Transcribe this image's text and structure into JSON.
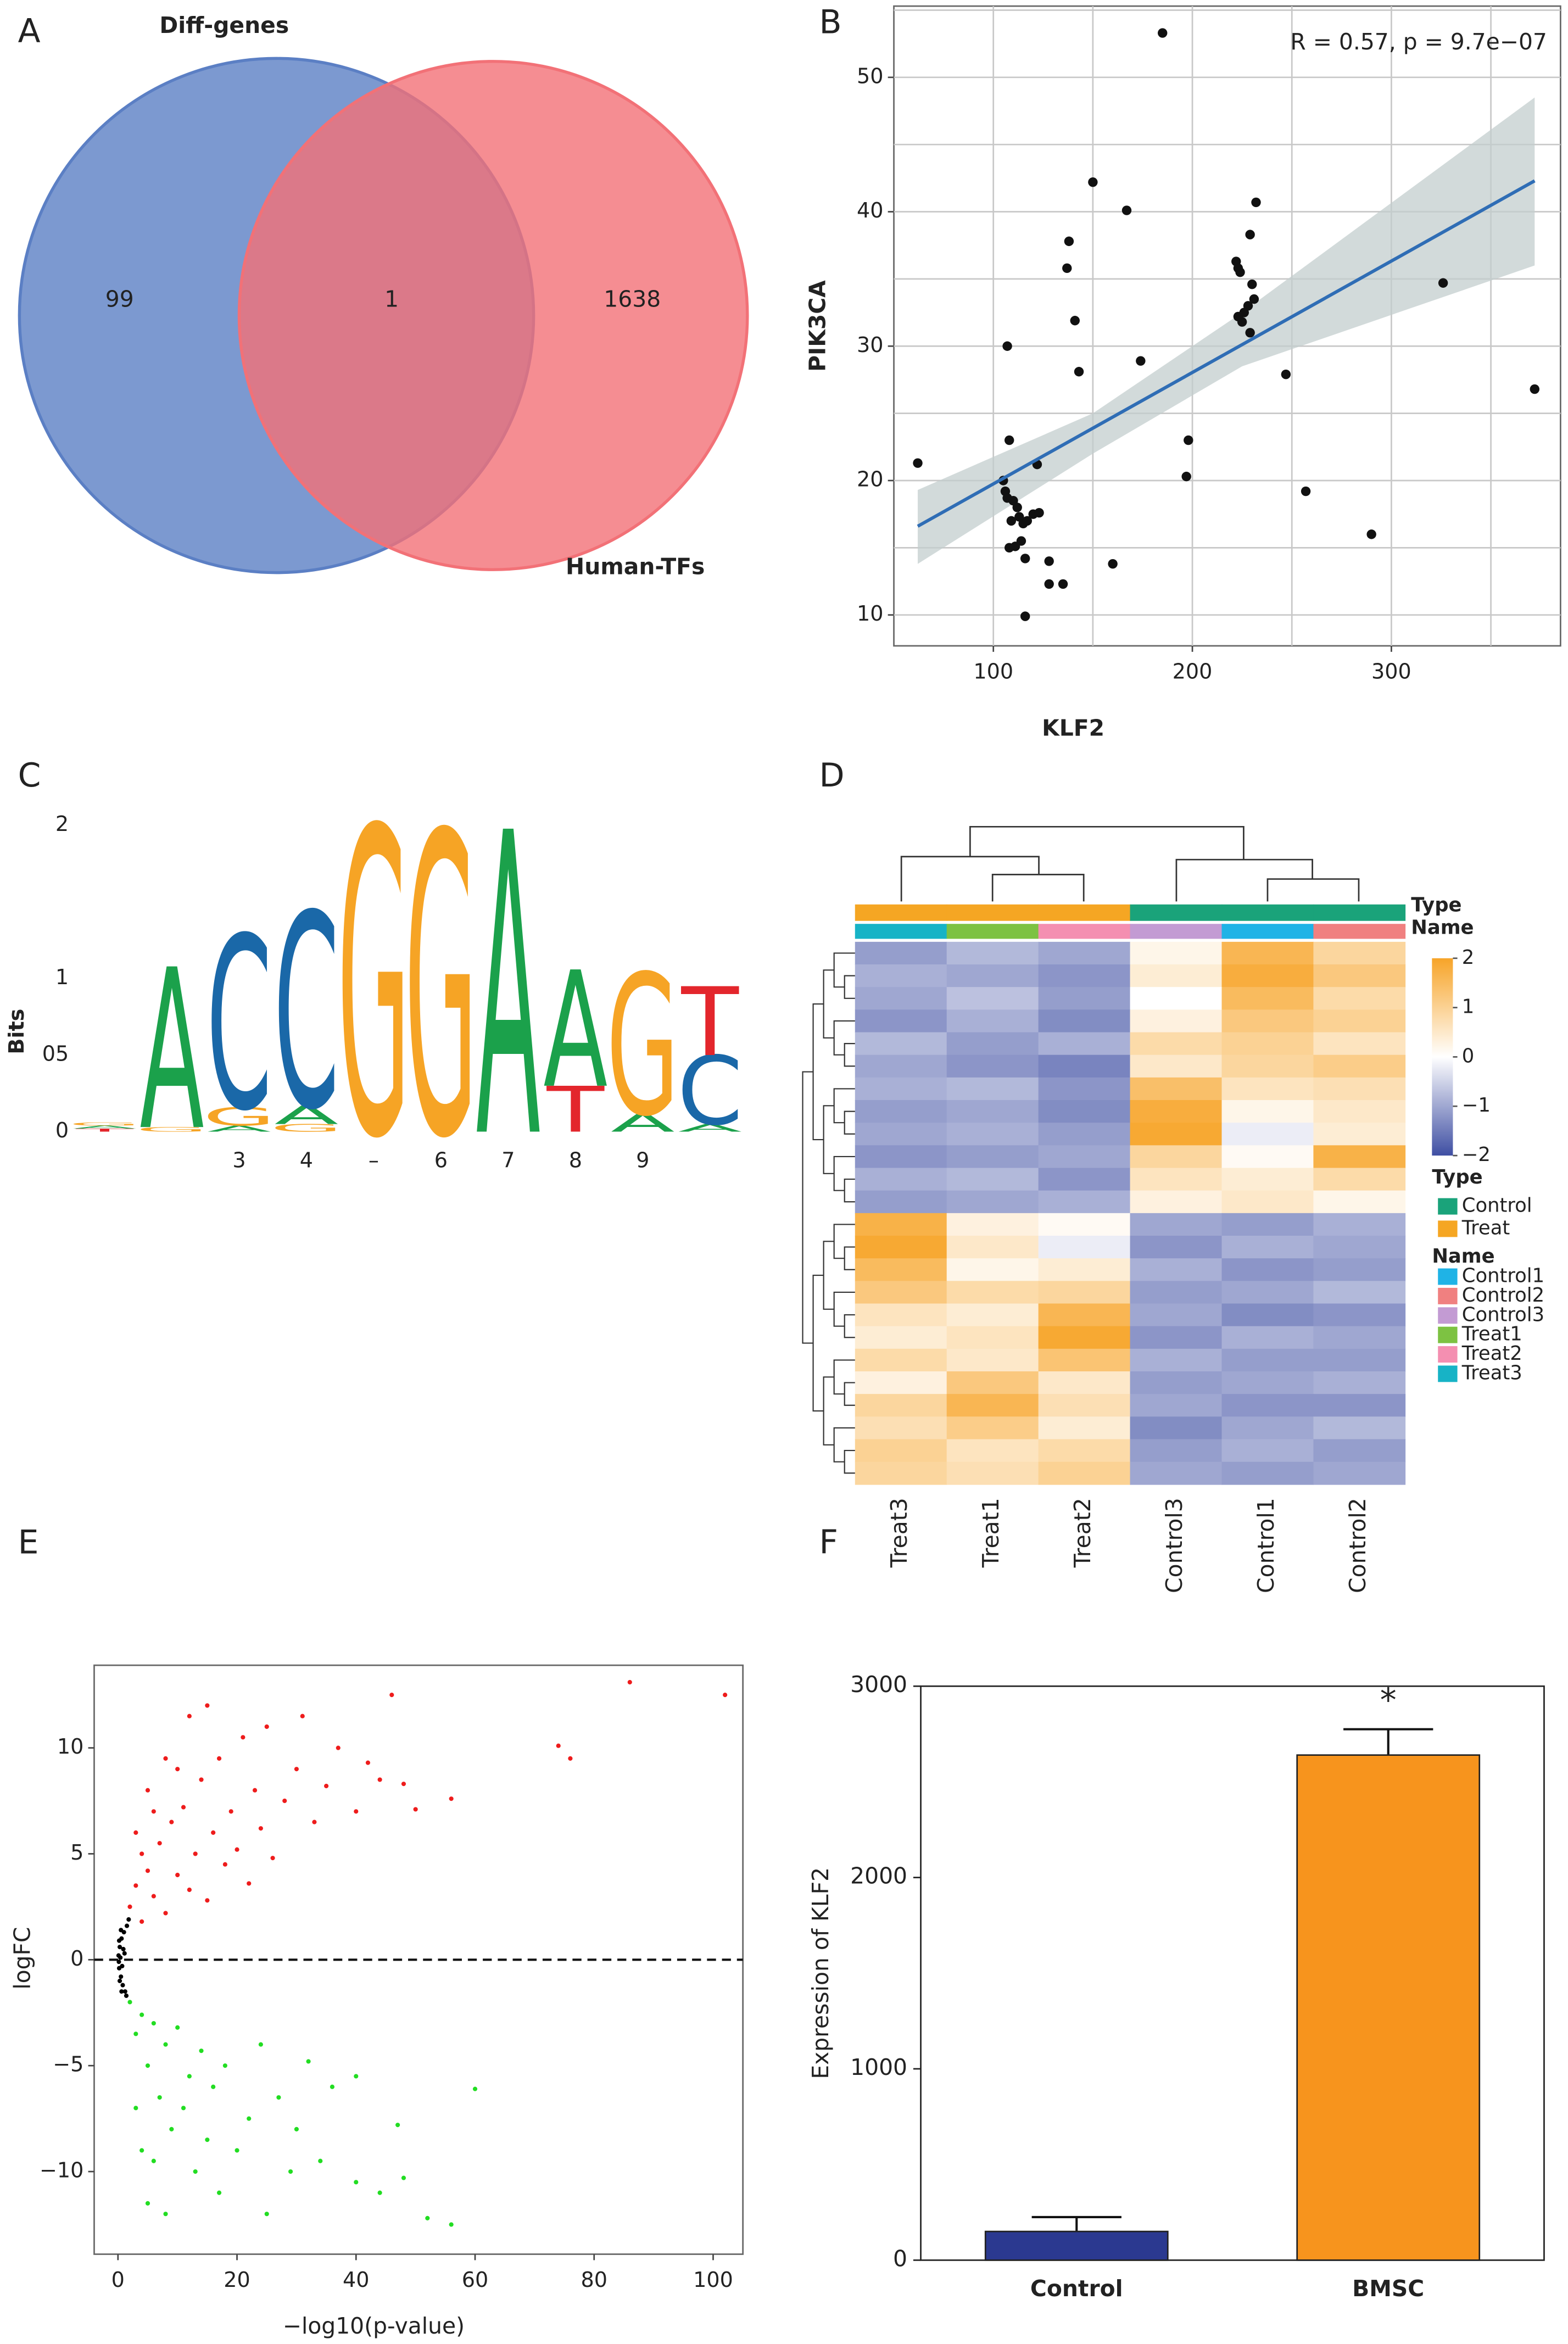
{
  "chart_data": [
    {
      "type": "venn",
      "panel": "A",
      "sets": [
        "Diff-genes",
        "Human-TFs"
      ],
      "values": [
        99,
        1,
        1638
      ],
      "colors": [
        "#5b7fc4",
        "#f27177"
      ]
    },
    {
      "type": "scatter",
      "panel": "B",
      "xlabel": "KLF2",
      "ylabel": "PIK3CA",
      "annotation": "R = 0.57, p = 9.7e−07",
      "x": [
        62,
        185,
        150,
        167,
        138,
        137,
        141,
        143,
        174,
        107,
        108,
        122,
        105,
        106,
        107,
        110,
        112,
        113,
        115,
        117,
        120,
        123,
        109,
        114,
        108,
        111,
        116,
        128,
        128,
        135,
        116,
        160,
        198,
        197,
        222,
        223,
        224,
        229,
        232,
        230,
        231,
        228,
        226,
        223,
        225,
        229,
        247,
        257,
        290,
        326,
        372
      ],
      "values": [
        21.3,
        53.3,
        42.2,
        40.1,
        37.8,
        35.8,
        31.9,
        28.1,
        28.9,
        30.0,
        23.0,
        21.2,
        20.0,
        19.2,
        18.7,
        18.5,
        18.0,
        17.3,
        16.8,
        17.0,
        17.5,
        17.6,
        17.0,
        15.5,
        15.0,
        15.1,
        14.2,
        14.0,
        12.3,
        12.3,
        9.9,
        13.8,
        23.0,
        20.3,
        36.3,
        35.8,
        35.5,
        38.3,
        40.7,
        34.6,
        33.5,
        33.0,
        32.5,
        32.2,
        31.8,
        31.0,
        27.9,
        19.2,
        16.0,
        34.7,
        26.8
      ],
      "color": "#111111",
      "fit": {
        "x": [
          62,
          372
        ],
        "values": [
          16.6,
          42.3
        ],
        "color": "#2f6db5"
      },
      "band": {
        "x": [
          62,
          150,
          225,
          372
        ],
        "upper": [
          19.3,
          25.0,
          32.5,
          48.5
        ],
        "lower": [
          13.8,
          22.0,
          28.5,
          36.0
        ],
        "color": "#c3cdcd"
      },
      "xlim": [
        50,
        385
      ],
      "ylim": [
        7.7,
        55.3
      ],
      "xticks": [
        100,
        200,
        300
      ],
      "yticks": [
        10,
        20,
        30,
        40,
        50
      ],
      "xminor": [
        150,
        250,
        350
      ],
      "yminor": [
        15,
        25,
        35,
        45,
        55
      ],
      "grid": true
    },
    {
      "type": "logo",
      "panel": "C",
      "ylabel": "Bits",
      "ylim": [
        0,
        2
      ],
      "yticks": [
        0,
        {
          "value": 0.5,
          "label": "05"
        },
        1,
        2
      ],
      "categories": [
        null,
        null,
        "3",
        "4",
        "–",
        "6",
        "7",
        "8",
        "9",
        null
      ],
      "colors": {
        "A": "#1ba14b",
        "C": "#1a68a8",
        "G": "#f6a425",
        "T": "#e3262c"
      },
      "stacks": [
        [
          {
            "letter": "T",
            "bits": 0.02
          },
          {
            "letter": "A",
            "bits": 0.02
          },
          {
            "letter": "G",
            "bits": 0.02
          }
        ],
        [
          {
            "letter": "G",
            "bits": 0.03
          },
          {
            "letter": "A",
            "bits": 1.05
          }
        ],
        [
          {
            "letter": "A",
            "bits": 0.04
          },
          {
            "letter": "G",
            "bits": 0.12
          },
          {
            "letter": "C",
            "bits": 1.13
          }
        ],
        [
          {
            "letter": "G",
            "bits": 0.05
          },
          {
            "letter": "A",
            "bits": 0.12
          },
          {
            "letter": "C",
            "bits": 1.27
          }
        ],
        [
          {
            "letter": "G",
            "bits": 2.0
          }
        ],
        [
          {
            "letter": "G",
            "bits": 1.97
          }
        ],
        [
          {
            "letter": "A",
            "bits": 1.98
          }
        ],
        [
          {
            "letter": "T",
            "bits": 0.3
          },
          {
            "letter": "A",
            "bits": 0.76
          }
        ],
        [
          {
            "letter": "A",
            "bits": 0.12
          },
          {
            "letter": "G",
            "bits": 0.92
          }
        ],
        [
          {
            "letter": "A",
            "bits": 0.05
          },
          {
            "letter": "C",
            "bits": 0.45
          },
          {
            "letter": "T",
            "bits": 0.45
          }
        ]
      ]
    },
    {
      "type": "heatmap",
      "panel": "D",
      "categories": [
        "Treat3",
        "Treat1",
        "Treat2",
        "Control3",
        "Control1",
        "Control2"
      ],
      "column_types": [
        "Treat",
        "Treat",
        "Treat",
        "Control",
        "Control",
        "Control"
      ],
      "annotation_titles": [
        "Type",
        "Name"
      ],
      "values": [
        [
          -1.1,
          -0.8,
          -1.0,
          0.2,
          1.6,
          0.9
        ],
        [
          -0.9,
          -1.0,
          -1.2,
          0.4,
          1.8,
          1.2
        ],
        [
          -1.0,
          -0.7,
          -1.1,
          0.0,
          1.5,
          0.8
        ],
        [
          -1.2,
          -0.9,
          -1.3,
          0.3,
          1.2,
          1.0
        ],
        [
          -0.8,
          -1.1,
          -0.9,
          0.8,
          1.0,
          0.6
        ],
        [
          -1.0,
          -1.2,
          -1.4,
          0.5,
          0.9,
          1.1
        ],
        [
          -0.9,
          -0.8,
          -1.2,
          1.4,
          0.6,
          0.7
        ],
        [
          -1.1,
          -1.0,
          -1.3,
          1.8,
          0.2,
          0.5
        ],
        [
          -1.0,
          -0.9,
          -1.1,
          1.9,
          -0.2,
          0.4
        ],
        [
          -1.2,
          -1.1,
          -1.0,
          0.9,
          0.1,
          1.7
        ],
        [
          -0.9,
          -0.8,
          -1.2,
          0.6,
          0.4,
          0.8
        ],
        [
          -1.1,
          -1.0,
          -0.9,
          0.3,
          0.5,
          0.2
        ],
        [
          1.7,
          0.3,
          0.1,
          -1.0,
          -1.1,
          -0.9
        ],
        [
          1.9,
          0.5,
          -0.2,
          -1.2,
          -0.9,
          -1.0
        ],
        [
          1.5,
          0.2,
          0.4,
          -0.9,
          -1.2,
          -1.1
        ],
        [
          1.2,
          0.8,
          0.9,
          -1.1,
          -1.0,
          -0.8
        ],
        [
          0.6,
          0.4,
          1.6,
          -1.0,
          -1.3,
          -1.2
        ],
        [
          0.4,
          0.6,
          1.9,
          -1.2,
          -0.9,
          -1.0
        ],
        [
          0.8,
          0.5,
          1.3,
          -0.9,
          -1.1,
          -1.1
        ],
        [
          0.3,
          1.2,
          0.5,
          -1.1,
          -1.0,
          -0.9
        ],
        [
          0.9,
          1.6,
          0.7,
          -1.0,
          -1.2,
          -1.2
        ],
        [
          0.7,
          1.1,
          0.4,
          -1.3,
          -1.0,
          -0.8
        ],
        [
          1.0,
          0.6,
          0.8,
          -1.1,
          -0.9,
          -1.1
        ],
        [
          0.9,
          0.7,
          1.0,
          -1.0,
          -1.1,
          -1.0
        ]
      ],
      "colors": [
        "#3f4fa3",
        "#ffffff",
        "#f7a428"
      ],
      "zlim": [
        -2,
        2
      ],
      "zticks": [
        2,
        1,
        0,
        {
          "value": -1,
          "label": "−1"
        },
        {
          "value": -2,
          "label": "−2"
        }
      ],
      "legend_type": {
        "title": "Type",
        "names": [
          "Control",
          "Treat"
        ],
        "colors": [
          "#1aa37a",
          "#f5a623"
        ]
      },
      "legend_name": {
        "title": "Name",
        "names": [
          "Control1",
          "Control2",
          "Control3",
          "Treat1",
          "Treat2",
          "Treat3"
        ],
        "colors": [
          "#1fb3e6",
          "#f08080",
          "#c39bd3",
          "#7dc242",
          "#f48fb1",
          "#17b3c6"
        ]
      }
    },
    {
      "type": "scatter",
      "panel": "E",
      "xlabel": "−log10(p-value)",
      "ylabel": "logFC",
      "series": [
        {
          "color": "#ee1c1c",
          "x": [
            2,
            3,
            4,
            5,
            6,
            7,
            8,
            9,
            10,
            11,
            12,
            13,
            14,
            15,
            16,
            17,
            18,
            19,
            20,
            21,
            22,
            23,
            24,
            25,
            26,
            28,
            30,
            31,
            33,
            35,
            37,
            40,
            42,
            44,
            46,
            48,
            50,
            56,
            74,
            76,
            86,
            102,
            3,
            5,
            8,
            12,
            15,
            4,
            6,
            10
          ],
          "values": [
            2.5,
            3.5,
            1.8,
            4.2,
            3,
            5.5,
            2.2,
            6.5,
            4,
            7.2,
            3.3,
            5,
            8.5,
            2.8,
            6,
            9.5,
            4.5,
            7,
            5.2,
            10.5,
            3.6,
            8,
            6.2,
            11,
            4.8,
            7.5,
            9,
            11.5,
            6.5,
            8.2,
            10,
            7,
            9.3,
            8.5,
            12.5,
            8.3,
            7.1,
            7.6,
            10.1,
            9.5,
            13.1,
            12.5,
            6,
            8,
            9.5,
            11.5,
            12,
            5,
            7,
            9
          ]
        },
        {
          "color": "#22dd22",
          "x": [
            2,
            3,
            4,
            5,
            6,
            7,
            8,
            9,
            10,
            11,
            12,
            13,
            14,
            15,
            16,
            17,
            18,
            20,
            22,
            24,
            25,
            27,
            29,
            30,
            32,
            34,
            36,
            40,
            40,
            44,
            47,
            48,
            52,
            56,
            60,
            4,
            5,
            8,
            3,
            6
          ],
          "values": [
            -2,
            -3.5,
            -2.6,
            -5,
            -3,
            -6.5,
            -4,
            -8,
            -3.2,
            -7,
            -5.5,
            -10,
            -4.3,
            -8.5,
            -6,
            -11,
            -5,
            -9,
            -7.5,
            -4,
            -12,
            -6.5,
            -10,
            -8,
            -4.8,
            -9.5,
            -6,
            -5.5,
            -10.5,
            -11,
            -7.8,
            -10.3,
            -12.2,
            -12.5,
            -6.1,
            -9,
            -11.5,
            -12,
            -7,
            -9.5
          ]
        },
        {
          "color": "#000000",
          "x": [
            0.1,
            0.2,
            0.3,
            0.5,
            0.6,
            0.8,
            1,
            1.2,
            0.4,
            0.2,
            0.7,
            1.5,
            1.4,
            0.9,
            0.3,
            1.1,
            0.15,
            0.5,
            0.6,
            1.8
          ],
          "values": [
            0.2,
            -0.4,
            0.6,
            -0.8,
            1,
            -1.2,
            1.3,
            -1.5,
            0.1,
            0.9,
            -0.3,
            1.6,
            -1.7,
            0.5,
            -1.0,
            0.3,
            -0.1,
            1.4,
            -1.5,
            1.9
          ]
        }
      ],
      "hline": 0,
      "xlim": [
        -4,
        105
      ],
      "ylim": [
        -13.9,
        13.9
      ],
      "xticks": [
        0,
        20,
        40,
        60,
        80,
        100
      ],
      "yticks": [
        {
          "value": -10,
          "label": "−10"
        },
        {
          "value": -5,
          "label": "−5"
        },
        0,
        5,
        10
      ],
      "grid": false
    },
    {
      "type": "bar",
      "panel": "F",
      "ylabel": "Expression of KLF2",
      "categories": [
        "Control",
        "BMSC"
      ],
      "values": [
        150,
        2640
      ],
      "errors": [
        75,
        135
      ],
      "colors": [
        "#2b3990",
        "#f7941d"
      ],
      "annotation": "*",
      "ylim": [
        0,
        3000
      ],
      "yticks": [
        0,
        1000,
        2000,
        3000
      ]
    }
  ]
}
